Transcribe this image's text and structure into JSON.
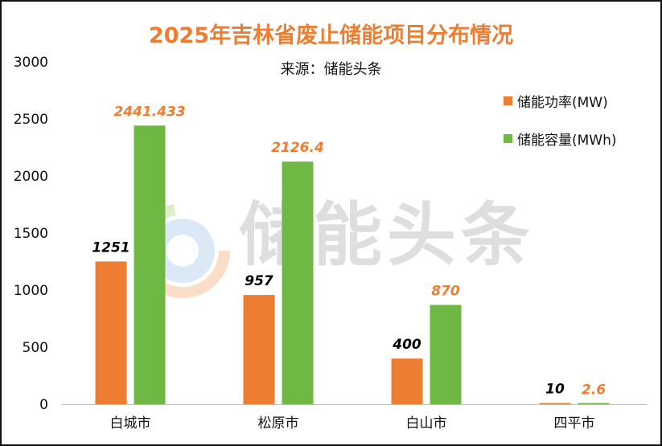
{
  "chart_data": {
    "type": "bar",
    "title": "2025年吉林省废止储能项目分布情况",
    "subtitle": "来源：储能头条",
    "categories": [
      "白城市",
      "松原市",
      "白山市",
      "四平市"
    ],
    "series": [
      {
        "name": "储能功率(MW)",
        "color": "#ED7D31",
        "label_color": "#000000",
        "values": [
          1251,
          957,
          400,
          10
        ],
        "labels": [
          "1251",
          "957",
          "400",
          "10"
        ]
      },
      {
        "name": "储能容量(MWh)",
        "color": "#70B844",
        "label_color": "#ED7D31",
        "values": [
          2441.433,
          2126.4,
          870,
          2.6
        ],
        "labels": [
          "2441.433",
          "2126.4",
          "870",
          "2.6"
        ]
      }
    ],
    "ylim": [
      0,
      3000
    ],
    "yticks": [
      0,
      500,
      1000,
      1500,
      2000,
      2500,
      3000
    ],
    "grid": false,
    "legend_position": "top-right",
    "watermark": "储能头条"
  }
}
